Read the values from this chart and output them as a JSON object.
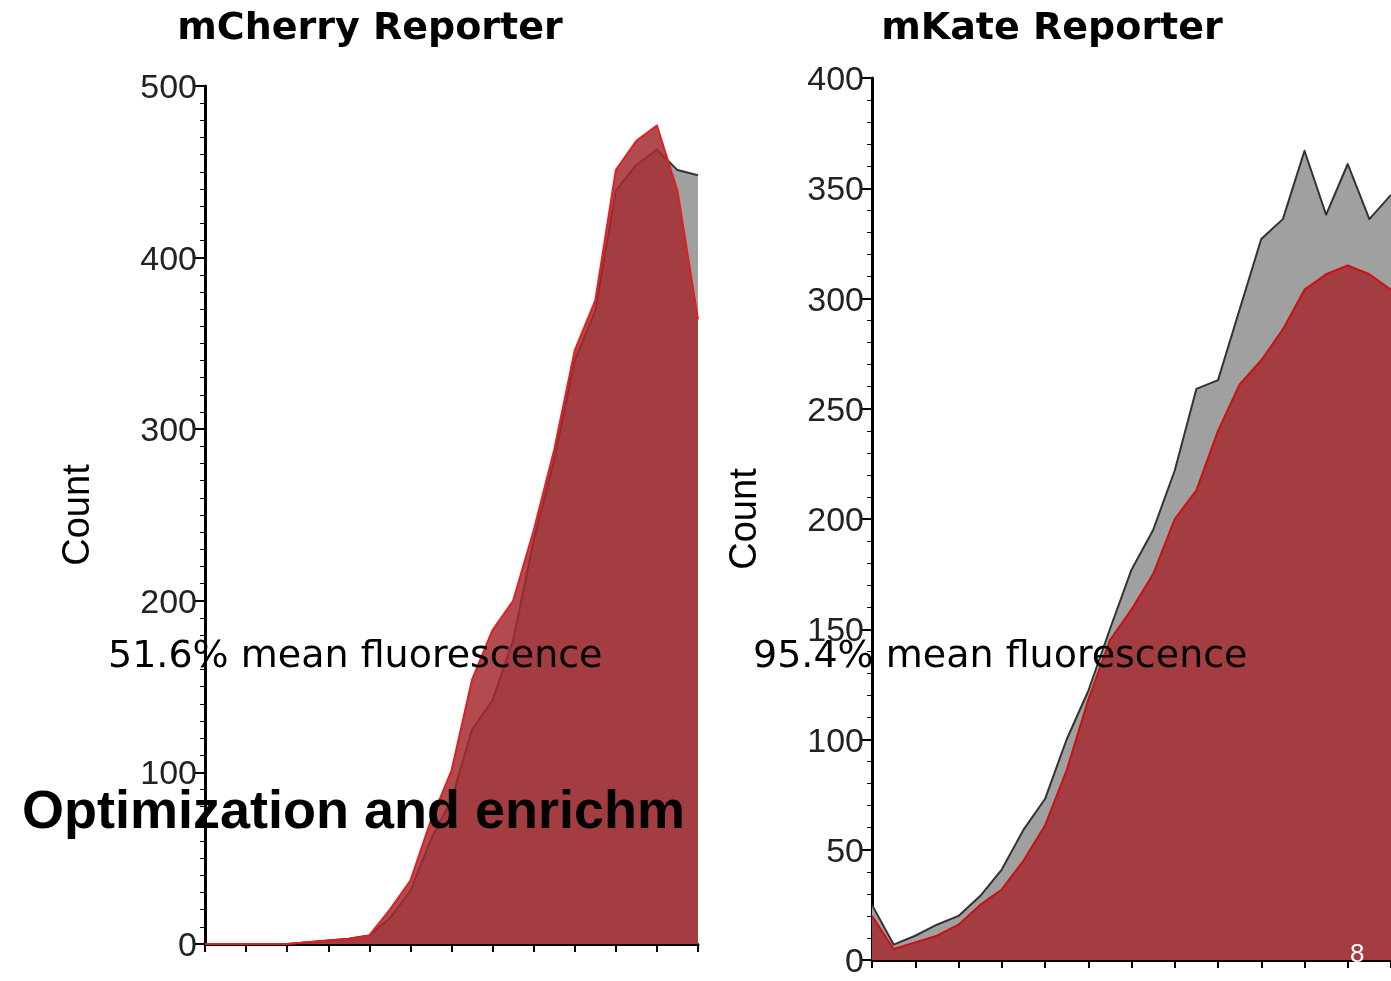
{
  "chart_data": [
    {
      "type": "area",
      "title": "mCherry Reporter",
      "ylabel": "Count",
      "categories": [
        null,
        null,
        null,
        null,
        null,
        null,
        null,
        null,
        null,
        null,
        null,
        null,
        null,
        null,
        null,
        null,
        null,
        null,
        null,
        null,
        null,
        null,
        null,
        null,
        null
      ],
      "series": [
        {
          "color": "#333333",
          "values": [
            0,
            0,
            0,
            0,
            0,
            1,
            2,
            3,
            5,
            15,
            31,
            61,
            84,
            125,
            142,
            177,
            235,
            282,
            340,
            369,
            439,
            454,
            463,
            451,
            448
          ]
        },
        {
          "color": "#e02020",
          "values": [
            0,
            0,
            0,
            0,
            0,
            1,
            2,
            3,
            5,
            20,
            37,
            72,
            101,
            154,
            183,
            200,
            241,
            288,
            346,
            375,
            451,
            468,
            477,
            439,
            364
          ]
        }
      ],
      "ylim": [
        0,
        500
      ],
      "yticks": [
        0,
        100,
        200,
        300,
        400,
        500
      ],
      "grid": false,
      "tick_labels": "y",
      "marker": "none",
      "annotations": [
        "51.6% mean fluorescence",
        "Optimization and enrichm"
      ]
    },
    {
      "type": "area",
      "title": "mKate Reporter",
      "ylabel": "Count",
      "categories": [
        null,
        null,
        null,
        null,
        null,
        null,
        null,
        null,
        null,
        null,
        null,
        null,
        null,
        null,
        null,
        null,
        null,
        null,
        null,
        null,
        null,
        null,
        null,
        null,
        null
      ],
      "series": [
        {
          "color": "#333333",
          "values": [
            25,
            7,
            11,
            16,
            20,
            29,
            41,
            59,
            73,
            100,
            122,
            150,
            177,
            195,
            222,
            259,
            263,
            295,
            327,
            336,
            367,
            338,
            361,
            336,
            347
          ]
        },
        {
          "color": "#cc1010",
          "values": [
            20,
            5,
            8,
            11,
            16,
            25,
            32,
            45,
            61,
            86,
            118,
            145,
            159,
            175,
            200,
            213,
            240,
            261,
            272,
            286,
            304,
            311,
            315,
            311,
            304
          ]
        }
      ],
      "ylim": [
        0,
        400
      ],
      "yticks": [
        0,
        50,
        100,
        150,
        200,
        250,
        300,
        350,
        400
      ],
      "grid": false,
      "tick_labels": "y",
      "marker": "none",
      "annotations": [
        "95.4% mean fluorescence",
        "8"
      ]
    }
  ]
}
